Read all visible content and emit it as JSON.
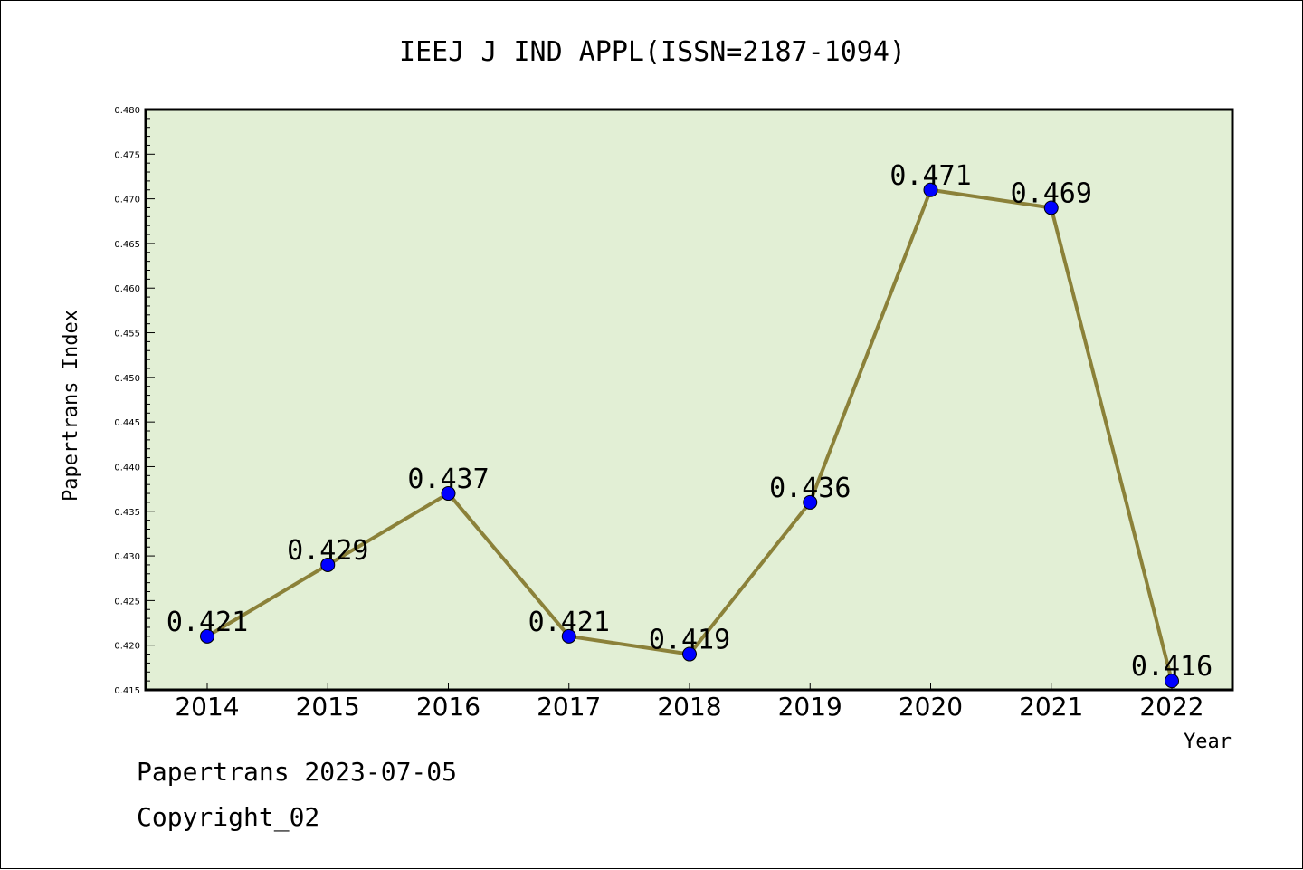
{
  "colors": {
    "plot_background": "#e2efd5",
    "line": "#8b8139",
    "marker": "#0000ff",
    "frame": "#000000"
  },
  "chart_data": {
    "type": "line",
    "title": "IEEJ J IND APPL(ISSN=2187-1094)",
    "xlabel": "Year",
    "ylabel": "Papertrans Index",
    "categories": [
      "2014",
      "2015",
      "2016",
      "2017",
      "2018",
      "2019",
      "2020",
      "2021",
      "2022"
    ],
    "series": [
      {
        "values": [
          0.421,
          0.429,
          0.437,
          0.421,
          0.419,
          0.436,
          0.471,
          0.469,
          0.416
        ],
        "labels": [
          "0.421",
          "0.429",
          "0.437",
          "0.421",
          "0.419",
          "0.436",
          "0.471",
          "0.469",
          "0.416"
        ]
      }
    ],
    "ylim": [
      0.415,
      0.48
    ],
    "yticks": [
      "0.415",
      "0.420",
      "0.425",
      "0.430",
      "0.435",
      "0.440",
      "0.445",
      "0.450",
      "0.455",
      "0.460",
      "0.465",
      "0.470",
      "0.475",
      "0.480"
    ],
    "grid": false,
    "legend": "none"
  },
  "footer": {
    "line1": "Papertrans 2023-07-05",
    "line2": "Copyright_02"
  }
}
